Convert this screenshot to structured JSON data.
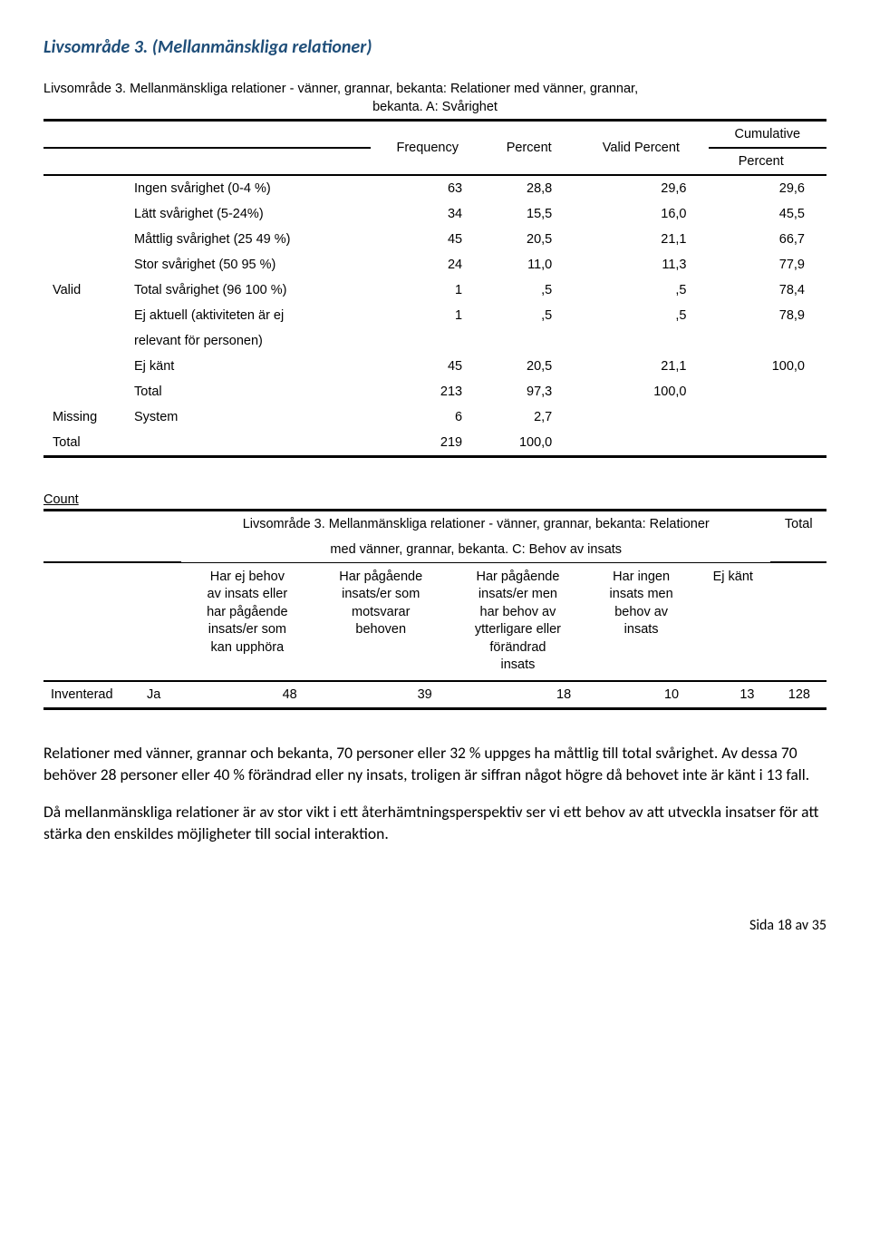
{
  "title": "Livsområde 3. (Mellanmänskliga relationer)",
  "freq_table": {
    "caption_line1": "Livsområde 3. Mellanmänskliga relationer - vänner, grannar, bekanta: Relationer med vänner, grannar,",
    "caption_line2": "bekanta. A: Svårighet",
    "headers": {
      "frequency": "Frequency",
      "percent": "Percent",
      "valid_percent": "Valid Percent",
      "cumulative": "Cumulative",
      "cumulative2": "Percent"
    },
    "valid_label": "Valid",
    "missing_label": "Missing",
    "total_label": "Total",
    "rows": [
      {
        "label": "Ingen svårighet (0-4 %)",
        "f": "63",
        "p": "28,8",
        "vp": "29,6",
        "cp": "29,6"
      },
      {
        "label": "Lätt svårighet (5-24%)",
        "f": "34",
        "p": "15,5",
        "vp": "16,0",
        "cp": "45,5"
      },
      {
        "label": "Måttlig svårighet (25 49 %)",
        "f": "45",
        "p": "20,5",
        "vp": "21,1",
        "cp": "66,7"
      },
      {
        "label": "Stor svårighet (50 95 %)",
        "f": "24",
        "p": "11,0",
        "vp": "11,3",
        "cp": "77,9"
      },
      {
        "label": "Total svårighet (96 100 %)",
        "f": "1",
        "p": ",5",
        "vp": ",5",
        "cp": "78,4"
      },
      {
        "label": "Ej aktuell (aktiviteten är ej",
        "label2": "relevant för personen)",
        "f": "1",
        "p": ",5",
        "vp": ",5",
        "cp": "78,9"
      },
      {
        "label": "Ej känt",
        "f": "45",
        "p": "20,5",
        "vp": "21,1",
        "cp": "100,0"
      },
      {
        "label": "Total",
        "f": "213",
        "p": "97,3",
        "vp": "100,0",
        "cp": ""
      }
    ],
    "missing": {
      "label": "System",
      "f": "6",
      "p": "2,7"
    },
    "grand_total": {
      "f": "219",
      "p": "100,0"
    }
  },
  "cross_table": {
    "count_label": "Count",
    "group_header1": "Livsområde 3. Mellanmänskliga relationer - vänner, grannar, bekanta: Relationer",
    "group_header2": "med vänner, grannar, bekanta. C: Behov av insats",
    "total_header": "Total",
    "cols": [
      "Har ej behov\nav insats eller\nhar pågående\ninsats/er som\nkan upphöra",
      "Har pågående\ninsats/er som\nmotsvarar\nbehoven",
      "Har pågående\ninsats/er men\nhar behov av\nytterligare eller\nförändrad\ninsats",
      "Har ingen\ninsats men\nbehov av\ninsats",
      "Ej känt"
    ],
    "row_label1": "Inventerad",
    "row_label2": "Ja",
    "values": [
      "48",
      "39",
      "18",
      "10",
      "13",
      "128"
    ]
  },
  "paragraphs": {
    "p1": "Relationer med vänner, grannar och bekanta, 70 personer eller 32 % uppges ha måttlig till total svårighet. Av dessa 70 behöver 28 personer eller 40 % förändrad eller ny insats, troligen är siffran något högre då behovet inte är känt i 13 fall.",
    "p2": "Då mellanmänskliga relationer är av stor vikt i ett återhämtningsperspektiv ser vi ett behov av att utveckla insatser för att stärka den enskildes möjligheter till social interaktion."
  },
  "footer": "Sida 18 av 35"
}
